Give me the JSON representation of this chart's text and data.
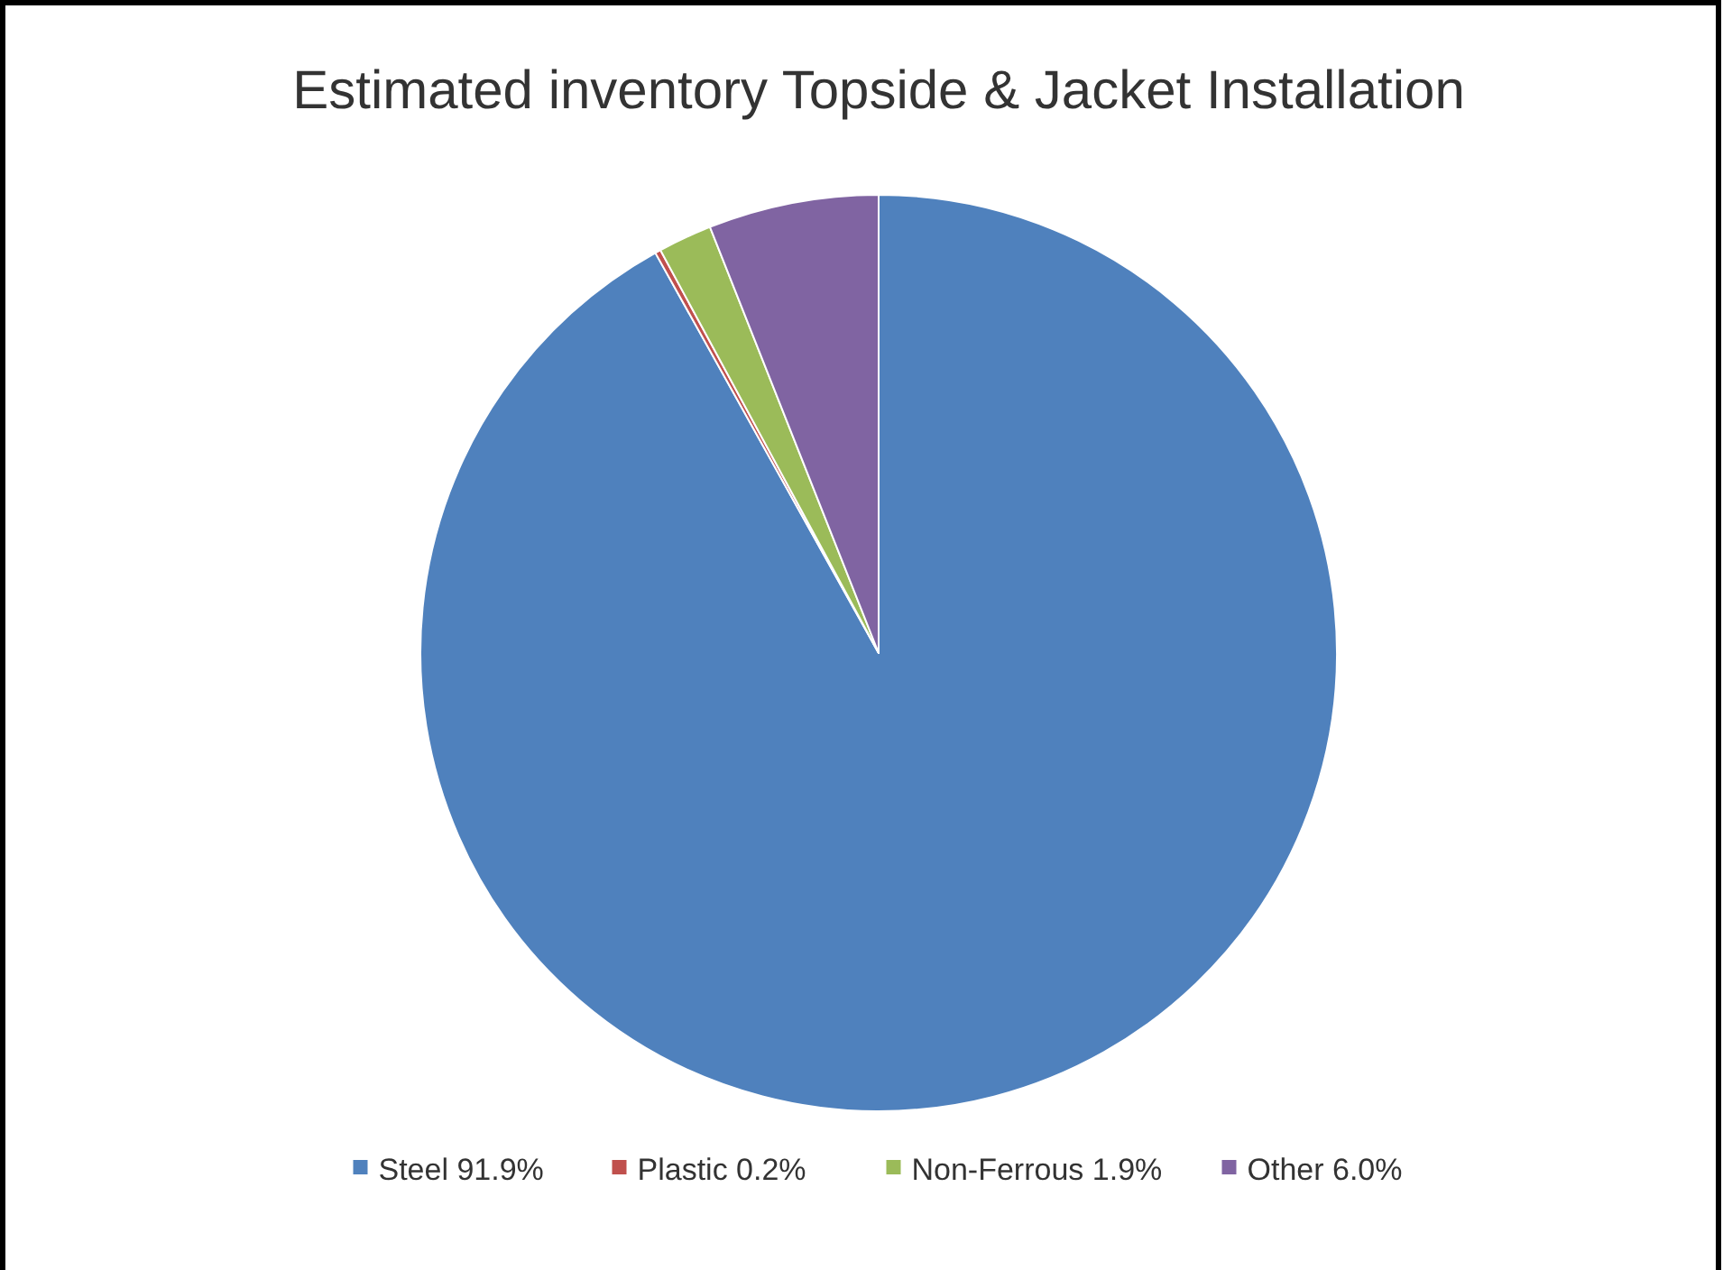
{
  "chart_data": {
    "type": "pie",
    "title": "Estimated inventory Topside & Jacket Installation",
    "categories": [
      "Steel 91.9%",
      "Plastic 0.2%",
      "Non-Ferrous 1.9%",
      "Other 6.0%"
    ],
    "values": [
      91.9,
      0.2,
      1.9,
      6.0
    ],
    "colors": [
      "#4f81bd",
      "#c0504d",
      "#9bbb59",
      "#8064a2"
    ],
    "legend": "bottom"
  }
}
